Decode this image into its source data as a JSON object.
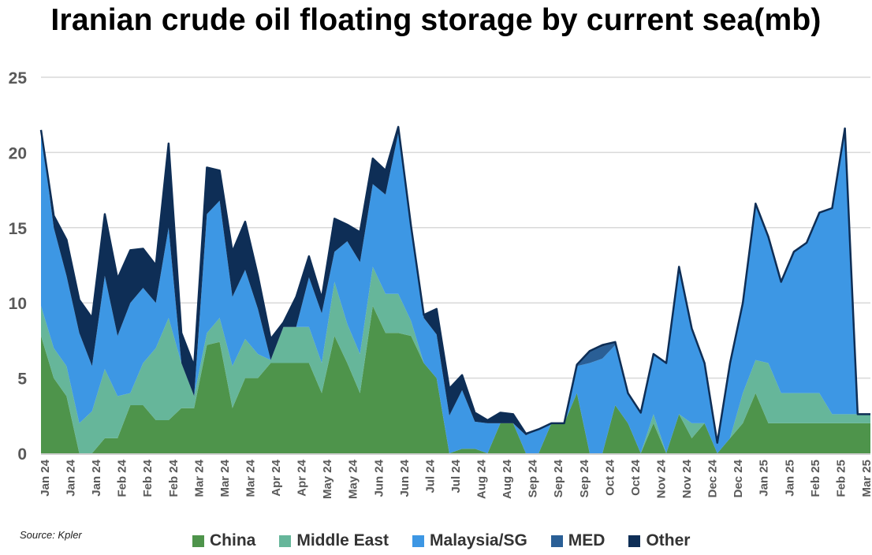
{
  "title": "Iranian crude oil floating storage by current sea(mb)",
  "source": "Source: Kpler",
  "colors": {
    "China": "#4e944b",
    "Middle East": "#66b69a",
    "Malaysia/SG": "#3d97e4",
    "MED": "#2a5f96",
    "Other": "#0e2e56",
    "outline": "#0e2e56",
    "grid": "#d9d9d9",
    "axis_text": "#595959"
  },
  "chart_data": {
    "type": "area",
    "stacked": true,
    "title": "Iranian crude oil floating storage by current sea(mb)",
    "ylim": [
      0,
      25
    ],
    "yticks": [
      0,
      5,
      10,
      15,
      20,
      25
    ],
    "grid": "horizontal",
    "legend_position": "bottom",
    "x_tick_labels": [
      "Jan 24",
      "Jan 24",
      "Jan 24",
      "Feb 24",
      "Feb 24",
      "Feb 24",
      "Mar 24",
      "Mar 24",
      "Mar 24",
      "Apr 24",
      "Apr 24",
      "May 24",
      "May 24",
      "Jun 24",
      "Jun 24",
      "Jul 24",
      "Jul 24",
      "Aug 24",
      "Aug 24",
      "Sep 24",
      "Sep 24",
      "Sep 24",
      "Oct 24",
      "Oct 24",
      "Nov 24",
      "Nov 24",
      "Dec 24",
      "Dec 24",
      "Jan 25",
      "Jan 25",
      "Feb 25",
      "Feb 25",
      "Mar 25"
    ],
    "x": [
      0,
      0.5,
      1,
      1.5,
      2,
      2.5,
      3,
      3.5,
      4,
      4.5,
      5,
      5.5,
      6,
      6.5,
      7,
      7.5,
      8,
      8.5,
      9,
      9.5,
      10,
      10.5,
      11,
      11.5,
      12,
      12.5,
      13,
      13.5,
      14,
      14.5,
      15,
      15.5,
      16,
      16.5,
      17,
      17.5,
      18,
      18.5,
      19,
      19.5,
      20,
      20.5,
      21,
      21.5,
      22,
      22.5,
      23,
      23.5,
      24,
      24.5,
      25,
      25.5,
      26,
      26.5,
      27,
      27.5,
      28,
      28.5,
      29,
      29.5,
      30,
      30.5,
      31,
      31.5,
      32,
      32.5
    ],
    "series": [
      {
        "name": "China",
        "values": [
          7.8,
          5.0,
          3.8,
          0,
          0,
          1.0,
          1.0,
          3.2,
          3.2,
          2.2,
          2.2,
          3.0,
          3.0,
          7.2,
          7.4,
          3.0,
          5.0,
          5.0,
          6.0,
          6.0,
          6.0,
          6.0,
          4.0,
          7.8,
          6.0,
          4.0,
          9.8,
          8.0,
          8.0,
          7.8,
          6.0,
          5.0,
          0,
          0.3,
          0.3,
          0,
          2.0,
          2.0,
          0,
          0,
          2.0,
          2.0,
          4.0,
          0,
          0,
          3.2,
          2.0,
          0,
          2.0,
          0,
          2.6,
          1.0,
          2.0,
          0,
          1.0,
          2.0,
          4.0,
          2.0,
          2.0,
          2.0,
          2.0,
          2.0,
          2.0,
          2.0,
          2.0,
          2.0
        ]
      },
      {
        "name": "Middle East",
        "values": [
          2.0,
          2.0,
          2.0,
          2.0,
          2.8,
          4.6,
          2.8,
          0.8,
          2.8,
          4.8,
          6.8,
          3.0,
          0.8,
          0.8,
          1.6,
          2.8,
          2.6,
          1.6,
          0.2,
          2.4,
          2.4,
          2.4,
          2.0,
          3.6,
          2.6,
          2.6,
          2.6,
          2.6,
          2.6,
          1.0,
          0,
          0,
          0,
          0,
          0,
          0,
          0,
          0,
          0,
          0,
          0,
          0,
          0,
          0,
          0,
          0,
          0,
          0,
          0.6,
          0,
          0,
          1.0,
          0,
          0,
          0,
          2.0,
          2.2,
          4.0,
          2.0,
          2.0,
          2.0,
          2.0,
          0.6,
          0.6,
          0.6,
          0.6
        ]
      },
      {
        "name": "Malaysia/SG",
        "values": [
          11.7,
          8.0,
          6.0,
          6.0,
          3.0,
          6.2,
          4.0,
          6.0,
          5.0,
          3.0,
          6.0,
          0,
          0,
          7.9,
          7.8,
          4.6,
          4.6,
          3.0,
          0,
          0,
          0,
          3.3,
          3.3,
          2.0,
          5.5,
          6.1,
          5.5,
          6.6,
          10.7,
          6.3,
          3.0,
          2.9,
          2.5,
          3.9,
          1.8,
          2.0,
          0,
          0,
          1.2,
          1.6,
          0,
          0,
          1.8,
          6.0,
          6.3,
          4.0,
          2.0,
          2.7,
          4.0,
          6.0,
          9.8,
          6.3,
          4.0,
          0.7,
          5.0,
          6.0,
          10.4,
          8.4,
          7.4,
          9.4,
          10.0,
          12.0,
          13.7,
          19.0,
          0,
          0
        ]
      },
      {
        "name": "MED",
        "values": [
          0,
          0,
          0,
          0,
          0,
          0,
          0,
          0,
          0,
          0,
          0,
          0,
          0,
          0,
          0,
          0,
          0,
          0,
          0,
          0,
          0,
          0,
          0,
          0,
          0,
          0,
          0,
          0,
          0,
          0,
          0,
          0,
          0,
          0,
          0,
          0,
          0,
          0,
          0,
          0,
          0,
          0,
          0,
          0.8,
          0.8,
          0.2,
          0,
          0,
          0,
          0,
          0,
          0,
          0,
          0,
          0,
          0,
          0,
          0,
          0,
          0,
          0,
          0,
          0,
          0,
          0,
          0
        ]
      },
      {
        "name": "Other",
        "values": [
          0,
          0.8,
          2.4,
          2.2,
          3.2,
          4.1,
          3.8,
          3.5,
          2.6,
          2.5,
          5.6,
          2.0,
          2.0,
          3.1,
          2.0,
          3.0,
          3.2,
          2.2,
          1.4,
          0.3,
          2.0,
          1.4,
          1.0,
          2.2,
          1.1,
          2.0,
          1.7,
          1.6,
          0.4,
          0,
          0.2,
          1.7,
          1.8,
          1.0,
          0.6,
          0.2,
          0.7,
          0.6,
          0.1,
          0,
          0,
          0,
          0.1,
          0,
          0.1,
          0,
          0,
          0,
          0,
          0,
          0,
          0,
          0,
          0,
          0,
          0,
          0,
          0,
          0,
          0,
          0,
          0,
          0,
          0,
          0,
          0
        ]
      }
    ]
  },
  "legend": [
    {
      "key": "China",
      "label": "China"
    },
    {
      "key": "Middle East",
      "label": "Middle East"
    },
    {
      "key": "Malaysia/SG",
      "label": "Malaysia/SG"
    },
    {
      "key": "MED",
      "label": "MED"
    },
    {
      "key": "Other",
      "label": "Other"
    }
  ]
}
